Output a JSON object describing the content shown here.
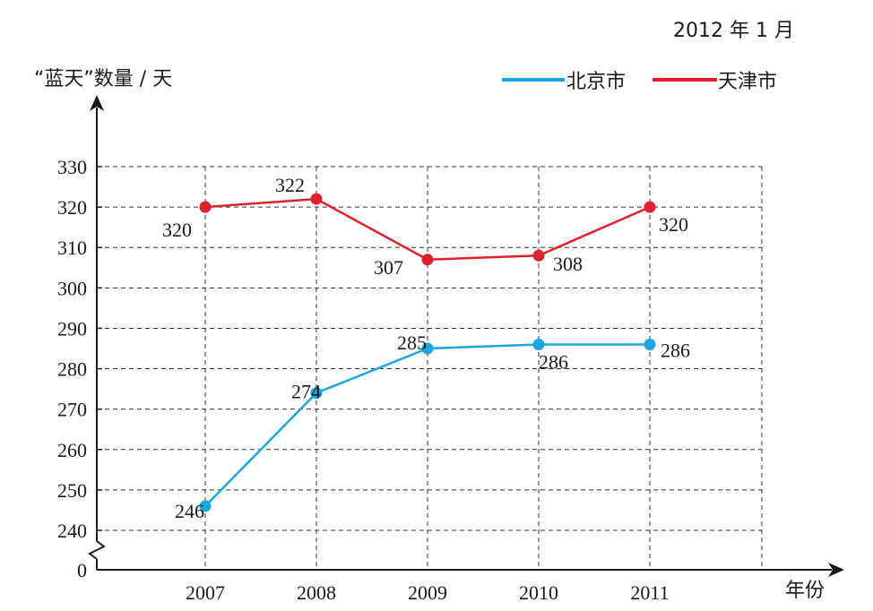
{
  "chart_data": {
    "type": "line",
    "date_note": "2012 年 1 月",
    "ylabel": "“蓝天”数量 / 天",
    "xlabel": "年份",
    "categories": [
      "2007",
      "2008",
      "2009",
      "2010",
      "2011"
    ],
    "y_ticks": [
      0,
      240,
      250,
      260,
      270,
      280,
      290,
      300,
      310,
      320,
      330
    ],
    "ylim": [
      240,
      330
    ],
    "axis_break": true,
    "grid": true,
    "legend_position": "top-right",
    "series": [
      {
        "name": "北京市",
        "color": "#1aa6e0",
        "values": [
          246,
          274,
          285,
          286,
          286
        ],
        "labels": [
          "246",
          "274",
          "285",
          "286",
          "286"
        ]
      },
      {
        "name": "天津市",
        "color": "#e0202a",
        "values": [
          320,
          322,
          307,
          308,
          320
        ],
        "labels": [
          "320",
          "322",
          "307",
          "308",
          "320"
        ]
      }
    ]
  }
}
